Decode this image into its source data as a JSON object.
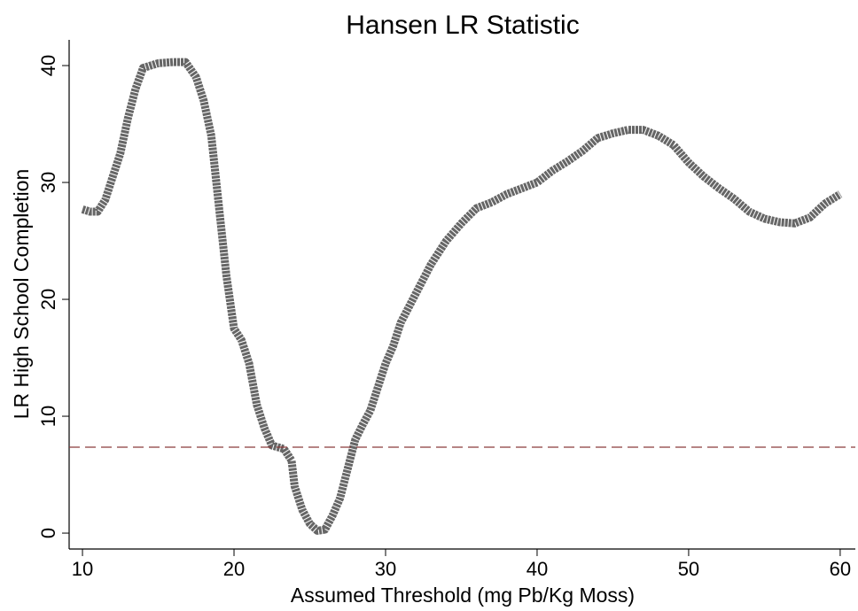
{
  "chart_data": {
    "type": "line",
    "title": "Hansen LR Statistic",
    "x_label": "Assumed Threshold (mg Pb/Kg Moss)",
    "y_label": "LR High School Completion",
    "x": [
      10,
      10.5,
      11,
      11.5,
      12,
      12.5,
      13,
      13.5,
      14,
      15,
      16,
      16.8,
      17.5,
      18,
      18.5,
      19,
      19.5,
      20,
      20.5,
      21,
      21.5,
      22,
      22.5,
      23.3,
      23.8,
      24,
      24.5,
      25,
      25.5,
      26,
      26.5,
      27,
      27.5,
      28,
      28.5,
      29,
      29.5,
      30,
      30.5,
      31,
      32,
      33,
      34,
      35,
      36,
      37,
      38,
      39,
      40,
      41,
      42,
      43,
      44,
      45,
      46,
      47,
      48,
      49,
      50,
      51,
      52,
      53,
      54,
      55,
      56,
      57,
      58,
      59,
      60
    ],
    "series": [
      {
        "color": "#666666",
        "values": [
          27.7,
          27.5,
          27.5,
          28.5,
          30.5,
          32.5,
          35.5,
          38,
          39.8,
          40.2,
          40.3,
          40.3,
          39,
          37,
          34,
          28,
          22,
          17.5,
          16.5,
          14.5,
          11,
          9,
          7.5,
          7.2,
          6.2,
          4,
          2,
          0.8,
          0.2,
          0.3,
          1.5,
          3,
          5.5,
          8,
          9.3,
          10.5,
          12.5,
          14.5,
          16,
          18,
          20.5,
          23,
          25,
          26.5,
          27.8,
          28.3,
          29,
          29.5,
          30,
          31,
          31.8,
          32.7,
          33.8,
          34.2,
          34.5,
          34.5,
          34,
          33.2,
          31.7,
          30.5,
          29.5,
          28.6,
          27.5,
          26.9,
          26.6,
          26.5,
          27,
          28.2,
          29
        ]
      }
    ],
    "hline": {
      "value": 7.35,
      "color": "#8b3a3a"
    },
    "xlim": [
      9.12,
      61
    ],
    "ylim": [
      -1.36,
      42.2
    ],
    "xticks": [
      10,
      20,
      30,
      40,
      50,
      60
    ],
    "yticks": [
      0,
      10,
      20,
      30,
      40
    ],
    "grid": false
  }
}
